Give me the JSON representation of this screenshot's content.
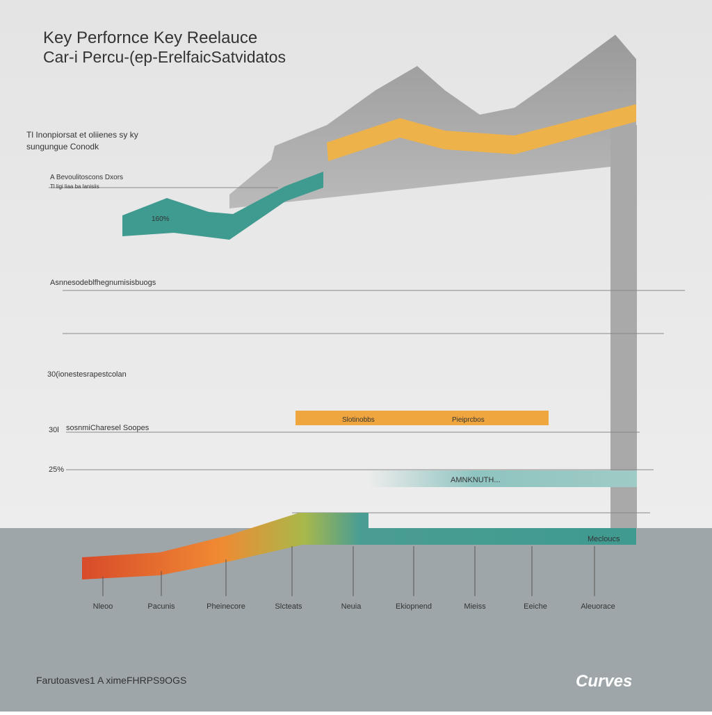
{
  "header": {
    "title": "Key Perfornce Key Reelauce",
    "subtitle": "Car-i Percu-(ep-ErelfaicSatvidatos"
  },
  "notes": [
    {
      "lines": [
        "Tl Inonpiorsat et oliienes sy ky",
        "sungungue Conodk"
      ]
    },
    {
      "lines": [
        "A Bevoulitoscons Dxors",
        "Tl ligi liaa ba lanisiis"
      ]
    }
  ],
  "band_labels": {
    "teal": "160%",
    "orange_left": "Slotinobbs",
    "orange_right": "Pieiprcbos",
    "teal_bar": "AMNKNUTH...",
    "base": "Mecloucs"
  },
  "row_labels": [
    "Asnnesodeblfhegnumisisbuogs",
    "30(ionestesrapestcolan",
    "30l",
    "sosnmiCharesel Soopes",
    "25%"
  ],
  "columns": [
    "Nleoo",
    "Pacunis",
    "Pheinecore",
    "Slcteats",
    "Neuia",
    "Ekiopnend",
    "Mieiss",
    "Eeiche",
    "Aleuorace"
  ],
  "footer": {
    "text": "Farutoasves1 A ximeFHRPS9OGS",
    "logo": "Curves"
  }
}
